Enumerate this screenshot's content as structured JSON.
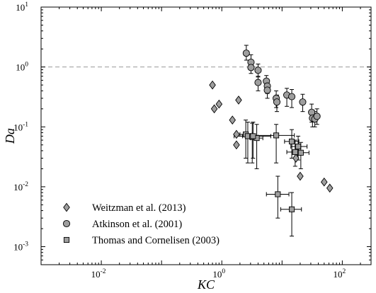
{
  "chart_data": {
    "type": "scatter",
    "title": "",
    "xlabel": "KC",
    "ylabel": "Da",
    "x_scale": "log",
    "y_scale": "log",
    "xlim": [
      0.001,
      300
    ],
    "ylim": [
      0.0005,
      10
    ],
    "x_ticks": [
      {
        "value": 0.01,
        "label_base": "10",
        "label_exp": "-2"
      },
      {
        "value": 1,
        "label_base": "10",
        "label_exp": "0"
      },
      {
        "value": 100,
        "label_base": "10",
        "label_exp": "2"
      }
    ],
    "y_ticks": [
      {
        "value": 0.001,
        "label_base": "10",
        "label_exp": "-3"
      },
      {
        "value": 0.01,
        "label_base": "10",
        "label_exp": "-2"
      },
      {
        "value": 0.1,
        "label_base": "10",
        "label_exp": "-1"
      },
      {
        "value": 1,
        "label_base": "10",
        "label_exp": "0"
      },
      {
        "value": 10,
        "label_base": "10",
        "label_exp": "1"
      }
    ],
    "reference_line": {
      "y": 1,
      "style": "dashed",
      "color": "#9a9a9a"
    },
    "grid": false,
    "legend_position": "bottom-left",
    "series": [
      {
        "name": "Weitzman et al. (2013)",
        "marker": "diamond",
        "color": "#9e9e9e",
        "points": [
          {
            "x": 0.7,
            "y": 0.5
          },
          {
            "x": 0.75,
            "y": 0.2
          },
          {
            "x": 0.9,
            "y": 0.24
          },
          {
            "x": 1.9,
            "y": 0.28
          },
          {
            "x": 1.5,
            "y": 0.13
          },
          {
            "x": 1.75,
            "y": 0.075
          },
          {
            "x": 1.75,
            "y": 0.05
          },
          {
            "x": 17,
            "y": 0.03
          },
          {
            "x": 18,
            "y": 0.038
          },
          {
            "x": 20,
            "y": 0.015
          },
          {
            "x": 50,
            "y": 0.012
          },
          {
            "x": 62,
            "y": 0.0095
          }
        ]
      },
      {
        "name": "Atkinson et al. (2001)",
        "marker": "circle",
        "color": "#9e9e9e",
        "points": [
          {
            "x": 2.55,
            "y": 1.7,
            "yerr": [
              1.3,
              2.3
            ]
          },
          {
            "x": 3.05,
            "y": 1.2,
            "yerr": [
              0.95,
              1.6
            ]
          },
          {
            "x": 3.05,
            "y": 0.98,
            "yerr": [
              0.78,
              1.3
            ]
          },
          {
            "x": 4.0,
            "y": 0.88,
            "yerr": [
              0.7,
              1.12
            ]
          },
          {
            "x": 4.0,
            "y": 0.55,
            "yerr": [
              0.4,
              0.68
            ]
          },
          {
            "x": 5.5,
            "y": 0.58,
            "yerr": [
              0.43,
              0.72
            ]
          },
          {
            "x": 5.7,
            "y": 0.48,
            "yerr": [
              0.36,
              0.62
            ]
          },
          {
            "x": 5.7,
            "y": 0.41,
            "yerr": [
              0.3,
              0.55
            ]
          },
          {
            "x": 8.0,
            "y": 0.3,
            "yerr": [
              0.21,
              0.4
            ]
          },
          {
            "x": 8.2,
            "y": 0.26,
            "yerr": [
              0.18,
              0.34
            ]
          },
          {
            "x": 12,
            "y": 0.34,
            "yerr": [
              0.22,
              0.44
            ]
          },
          {
            "x": 14.5,
            "y": 0.32,
            "yerr": [
              0.21,
              0.42
            ]
          },
          {
            "x": 22,
            "y": 0.26,
            "yerr": [
              0.18,
              0.35
            ]
          },
          {
            "x": 31,
            "y": 0.175,
            "yerr": [
              0.12,
              0.24
            ]
          },
          {
            "x": 32,
            "y": 0.14,
            "yerr": [
              0.1,
              0.19
            ]
          },
          {
            "x": 35,
            "y": 0.135,
            "yerr": [
              0.1,
              0.18
            ]
          },
          {
            "x": 38,
            "y": 0.15,
            "yerr": [
              0.11,
              0.2
            ]
          }
        ]
      },
      {
        "name": "Thomas and Cornelisen (2003)",
        "marker": "square",
        "color": "#9e9e9e",
        "points": [
          {
            "x": 2.5,
            "y": 0.075,
            "yerr": [
              0.03,
              0.13
            ],
            "xerr": [
              2.0,
              3.2
            ]
          },
          {
            "x": 2.7,
            "y": 0.07,
            "yerr": [
              0.025,
              0.12
            ],
            "xerr": [
              2.2,
              3.4
            ]
          },
          {
            "x": 3.2,
            "y": 0.068,
            "yerr": [
              0.025,
              0.115
            ],
            "xerr": [
              2.6,
              4.0
            ]
          },
          {
            "x": 3.8,
            "y": 0.065,
            "yerr": [
              0.02,
              0.11
            ],
            "xerr": [
              3.0,
              4.8
            ]
          },
          {
            "x": 3.3,
            "y": 0.07,
            "yerr": [
              0.03,
              0.12
            ],
            "xerr": [
              1.6,
              6.5
            ]
          },
          {
            "x": 8.0,
            "y": 0.072,
            "yerr": [
              0.025,
              0.11
            ],
            "xerr": [
              3.0,
              16
            ]
          },
          {
            "x": 14.5,
            "y": 0.057,
            "yerr": [
              0.03,
              0.09
            ],
            "xerr": [
              11,
              19
            ]
          },
          {
            "x": 16.5,
            "y": 0.038,
            "yerr": [
              0.022,
              0.06
            ],
            "xerr": [
              12,
              22
            ]
          },
          {
            "x": 18.5,
            "y": 0.047,
            "yerr": [
              0.028,
              0.07
            ],
            "xerr": [
              14,
              26
            ]
          },
          {
            "x": 20.5,
            "y": 0.037,
            "yerr": [
              0.02,
              0.055
            ],
            "xerr": [
              15,
              28
            ]
          },
          {
            "x": 8.5,
            "y": 0.0075,
            "yerr": [
              0.003,
              0.015
            ],
            "xerr": [
              5.5,
              13
            ]
          },
          {
            "x": 14.5,
            "y": 0.0042,
            "yerr": [
              0.0015,
              0.008
            ],
            "xerr": [
              9.5,
              21
            ]
          }
        ]
      }
    ]
  }
}
